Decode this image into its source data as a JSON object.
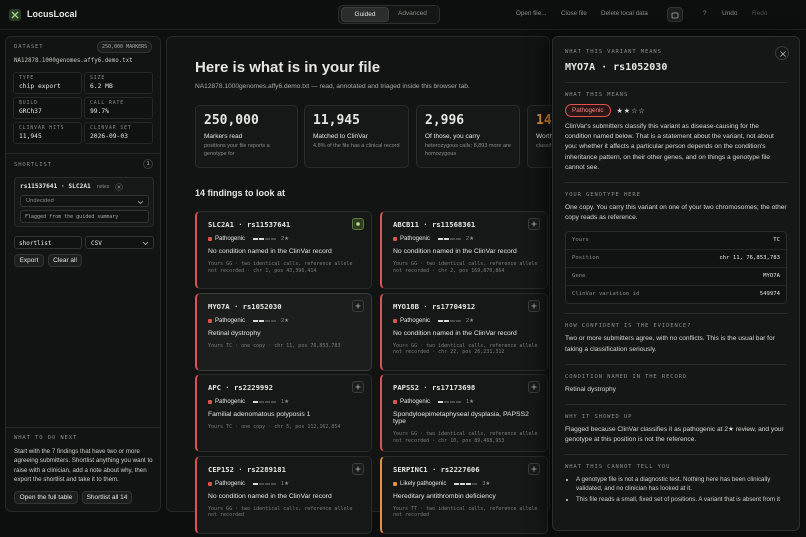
{
  "topbar": {
    "brand": "LocusLocal",
    "modes": [
      "Guided",
      "Advanced"
    ],
    "actions": [
      "Open file...",
      "Close file",
      "Delete local data"
    ],
    "help": "?",
    "undo": "Undo",
    "redo": "Redo"
  },
  "dataset": {
    "label": "DATASET",
    "badge": "250,000 MARKERS",
    "file": "NA12878.1000genomes.affy6.demo.txt",
    "fields": [
      {
        "label": "TYPE",
        "value": "chip export"
      },
      {
        "label": "SIZE",
        "value": "6.2 MB"
      },
      {
        "label": "BUILD",
        "value": "GRCh37"
      },
      {
        "label": "CALL RATE",
        "value": "99.7%"
      },
      {
        "label": "CLINVAR HITS",
        "value": "11,945"
      },
      {
        "label": "CLINVAR SET",
        "value": "2026-09-03"
      }
    ]
  },
  "shortlist": {
    "label": "SHORTLIST",
    "count": "1",
    "item": "rs11537641 · SLC2A1",
    "notes": "notes",
    "status": "Undecided",
    "note": "Flagged from the guided summary",
    "filename": "shortlist",
    "format": "CSV",
    "buttons": [
      "Export",
      "Clear all"
    ]
  },
  "next": {
    "label": "WHAT TO DO NEXT",
    "text": "Start with the 7 findings that have two or more agreeing submitters. Shortlist anything you want to raise with a clinician, add a note about why, then export the shortlist and take it to them.",
    "buttons": [
      "Open the full table",
      "Shortlist all 14"
    ]
  },
  "main": {
    "title": "Here is what is in your file",
    "subtitle": "NA12878.1000genomes.affy6.demo.txt — read, annotated and triaged inside this browser tab.",
    "stats": [
      {
        "value": "250,000",
        "label": "Markers read",
        "note": "positions your file reports a genotype for"
      },
      {
        "value": "11,945",
        "label": "Matched to ClinVar",
        "note": "4.8% of the file has a clinical record"
      },
      {
        "value": "2,996",
        "label": "Of those, you carry",
        "note": "heterozygous calls; 8,893 more are homozygous"
      },
      {
        "value": "14",
        "label": "Worth",
        "note": "classif"
      }
    ],
    "findings_title": "14 findings to look at",
    "findings": [
      {
        "title": "SLC2A1 · rs11537641",
        "badge": "Pathogenic",
        "stars": "2★",
        "condition": "No condition named in the ClinVar record",
        "detail": "Yours GG · two identical calls, reference allele not recorded · chr 1, pos 43,396,414",
        "color": "#e0524f",
        "added": true
      },
      {
        "title": "ABCB11 · rs11568361",
        "badge": "Pathogenic",
        "stars": "2★",
        "condition": "No condition named in the ClinVar record",
        "detail": "Yours GG · two identical calls, reference allele not recorded · chr 2, pos 169,870,864",
        "color": "#e0524f"
      },
      {
        "title": "MYO7A · rs1052030",
        "badge": "Pathogenic",
        "stars": "2★",
        "condition": "Retinal dystrophy",
        "detail": "Yours TC · one copy · chr 11, pos 76,853,783",
        "color": "#e0524f",
        "selected": true
      },
      {
        "title": "MYO18B · rs17704912",
        "badge": "Pathogenic",
        "stars": "2★",
        "condition": "No condition named in the ClinVar record",
        "detail": "Yours GG · two identical calls, reference allele not recorded · chr 22, pos 26,231,312",
        "color": "#e0524f"
      },
      {
        "title": "APC · rs2229992",
        "badge": "Pathogenic",
        "stars": "1★",
        "condition": "Familial adenomatous polyposis 1",
        "detail": "Yours TC · one copy · chr 5, pos 112,162,854",
        "color": "#e0524f"
      },
      {
        "title": "PAPSS2 · rs17173698",
        "badge": "Pathogenic",
        "stars": "1★",
        "condition": "Spondyloepimetaphyseal dysplasia, PAPSS2 type",
        "detail": "Yours GG · two identical calls, reference allele not recorded · chr 10, pos 89,468,953",
        "color": "#e0524f"
      },
      {
        "title": "CEP152 · rs2289181",
        "badge": "Pathogenic",
        "stars": "1★",
        "condition": "No condition named in the ClinVar record",
        "detail": "Yours GG · two identical calls, reference allele not recorded",
        "color": "#e0524f"
      },
      {
        "title": "SERPINC1 · rs2227606",
        "badge": "Likely pathogenic",
        "stars": "3★",
        "condition": "Hereditary antithrombin deficiency",
        "detail": "Yours TT · two identical calls, reference allele not recorded",
        "color": "#e8913a"
      }
    ]
  },
  "drawer": {
    "label": "WHAT THIS VARIANT MEANS",
    "title": "MYO7A · rs1052030",
    "meaning": {
      "label": "WHAT THIS MEANS",
      "badge": "Pathogenic",
      "stars": "★★☆☆",
      "text": "ClinVar's submitters classify this variant as disease-causing for the condition named below. That is a statement about the variant, not about you: whether it affects a particular person depends on the condition's inheritance pattern, on their other genes, and on things a genotype file cannot see."
    },
    "genotype": {
      "label": "YOUR GENOTYPE HERE",
      "text": "One copy. You carry this variant on one of your two chromosomes; the other copy reads as reference.",
      "rows": [
        [
          "Yours",
          "TC"
        ],
        [
          "Position",
          "chr 11, 76,853,783"
        ],
        [
          "Gene",
          "MYO7A"
        ],
        [
          "ClinVar variation id",
          "549974"
        ]
      ]
    },
    "confidence": {
      "label": "HOW CONFIDENT IS THE EVIDENCE?",
      "text": "Two or more submitters agree, with no conflicts. This is the usual bar for taking a classification seriously."
    },
    "condition": {
      "label": "CONDITION NAMED IN THE RECORD",
      "text": "Retinal dystrophy"
    },
    "why": {
      "label": "WHY IT SHOWED UP",
      "text": "Flagged because ClinVar classifies it as pathogenic at 2★ review, and your genotype at this position is not the reference."
    },
    "limits": {
      "label": "WHAT THIS CANNOT TELL YOU",
      "items": [
        "A genotype file is not a diagnostic test. Nothing here has been clinically validated, and no clinician has looked at it.",
        "This file reads a small, fixed set of positions. A variant that is absent from it"
      ]
    }
  }
}
